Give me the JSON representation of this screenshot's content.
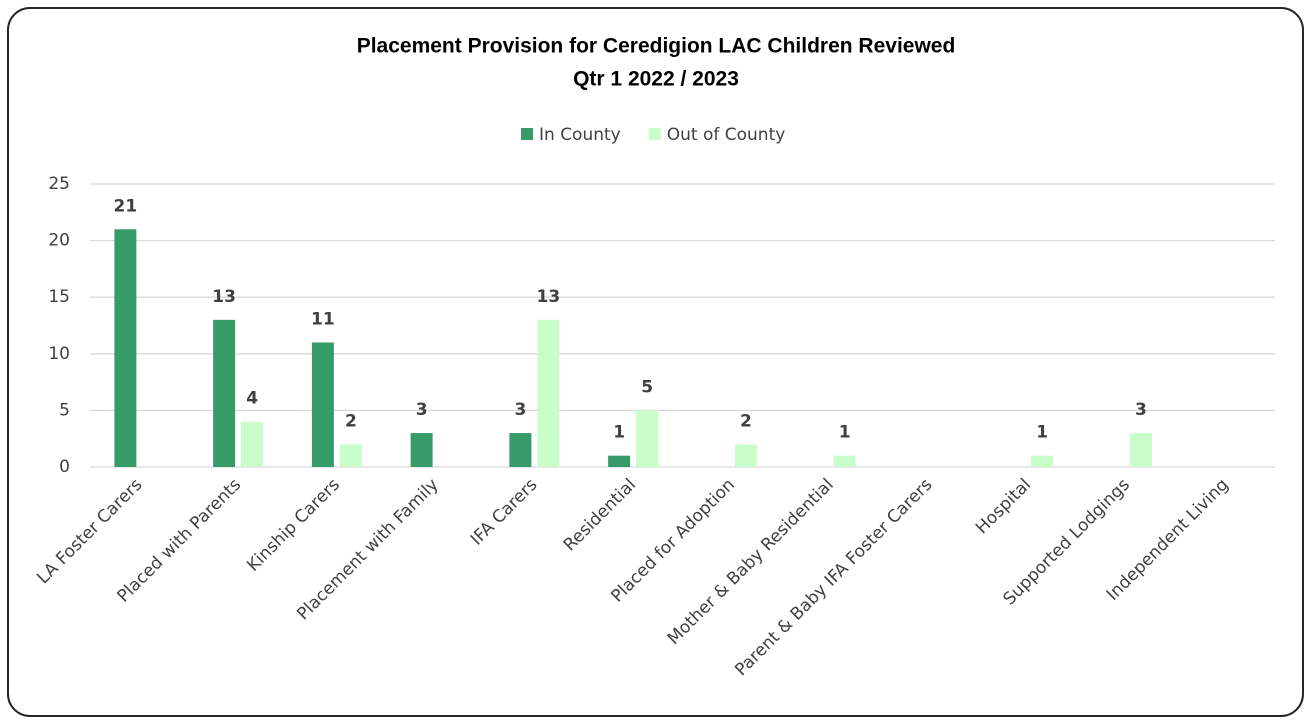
{
  "chart_data": {
    "type": "bar",
    "title": [
      "Placement Provision for Ceredigion LAC Children Reviewed",
      "Qtr 1 2022 / 2023"
    ],
    "categories": [
      "LA Foster Carers",
      "Placed with Parents",
      "Kinship Carers",
      "Placement with Family",
      "IFA Carers",
      "Residential",
      "Placed for Adoption",
      "Mother & Baby Residential",
      "Parent & Baby IFA Foster Carers",
      "Hospital",
      "Supported Lodgings",
      "Independent Living"
    ],
    "series": [
      {
        "name": "In County",
        "color": "#379b69",
        "values": [
          21,
          13,
          11,
          3,
          3,
          1,
          0,
          0,
          0,
          0,
          0,
          0
        ]
      },
      {
        "name": "Out of County",
        "color": "#c9fdc9",
        "values": [
          0,
          4,
          2,
          0,
          13,
          5,
          2,
          1,
          0,
          1,
          3,
          0
        ]
      }
    ],
    "ylim": [
      0,
      25
    ],
    "yticks": [
      0,
      5,
      10,
      15,
      20,
      25
    ],
    "grid": true,
    "legend": "top"
  }
}
